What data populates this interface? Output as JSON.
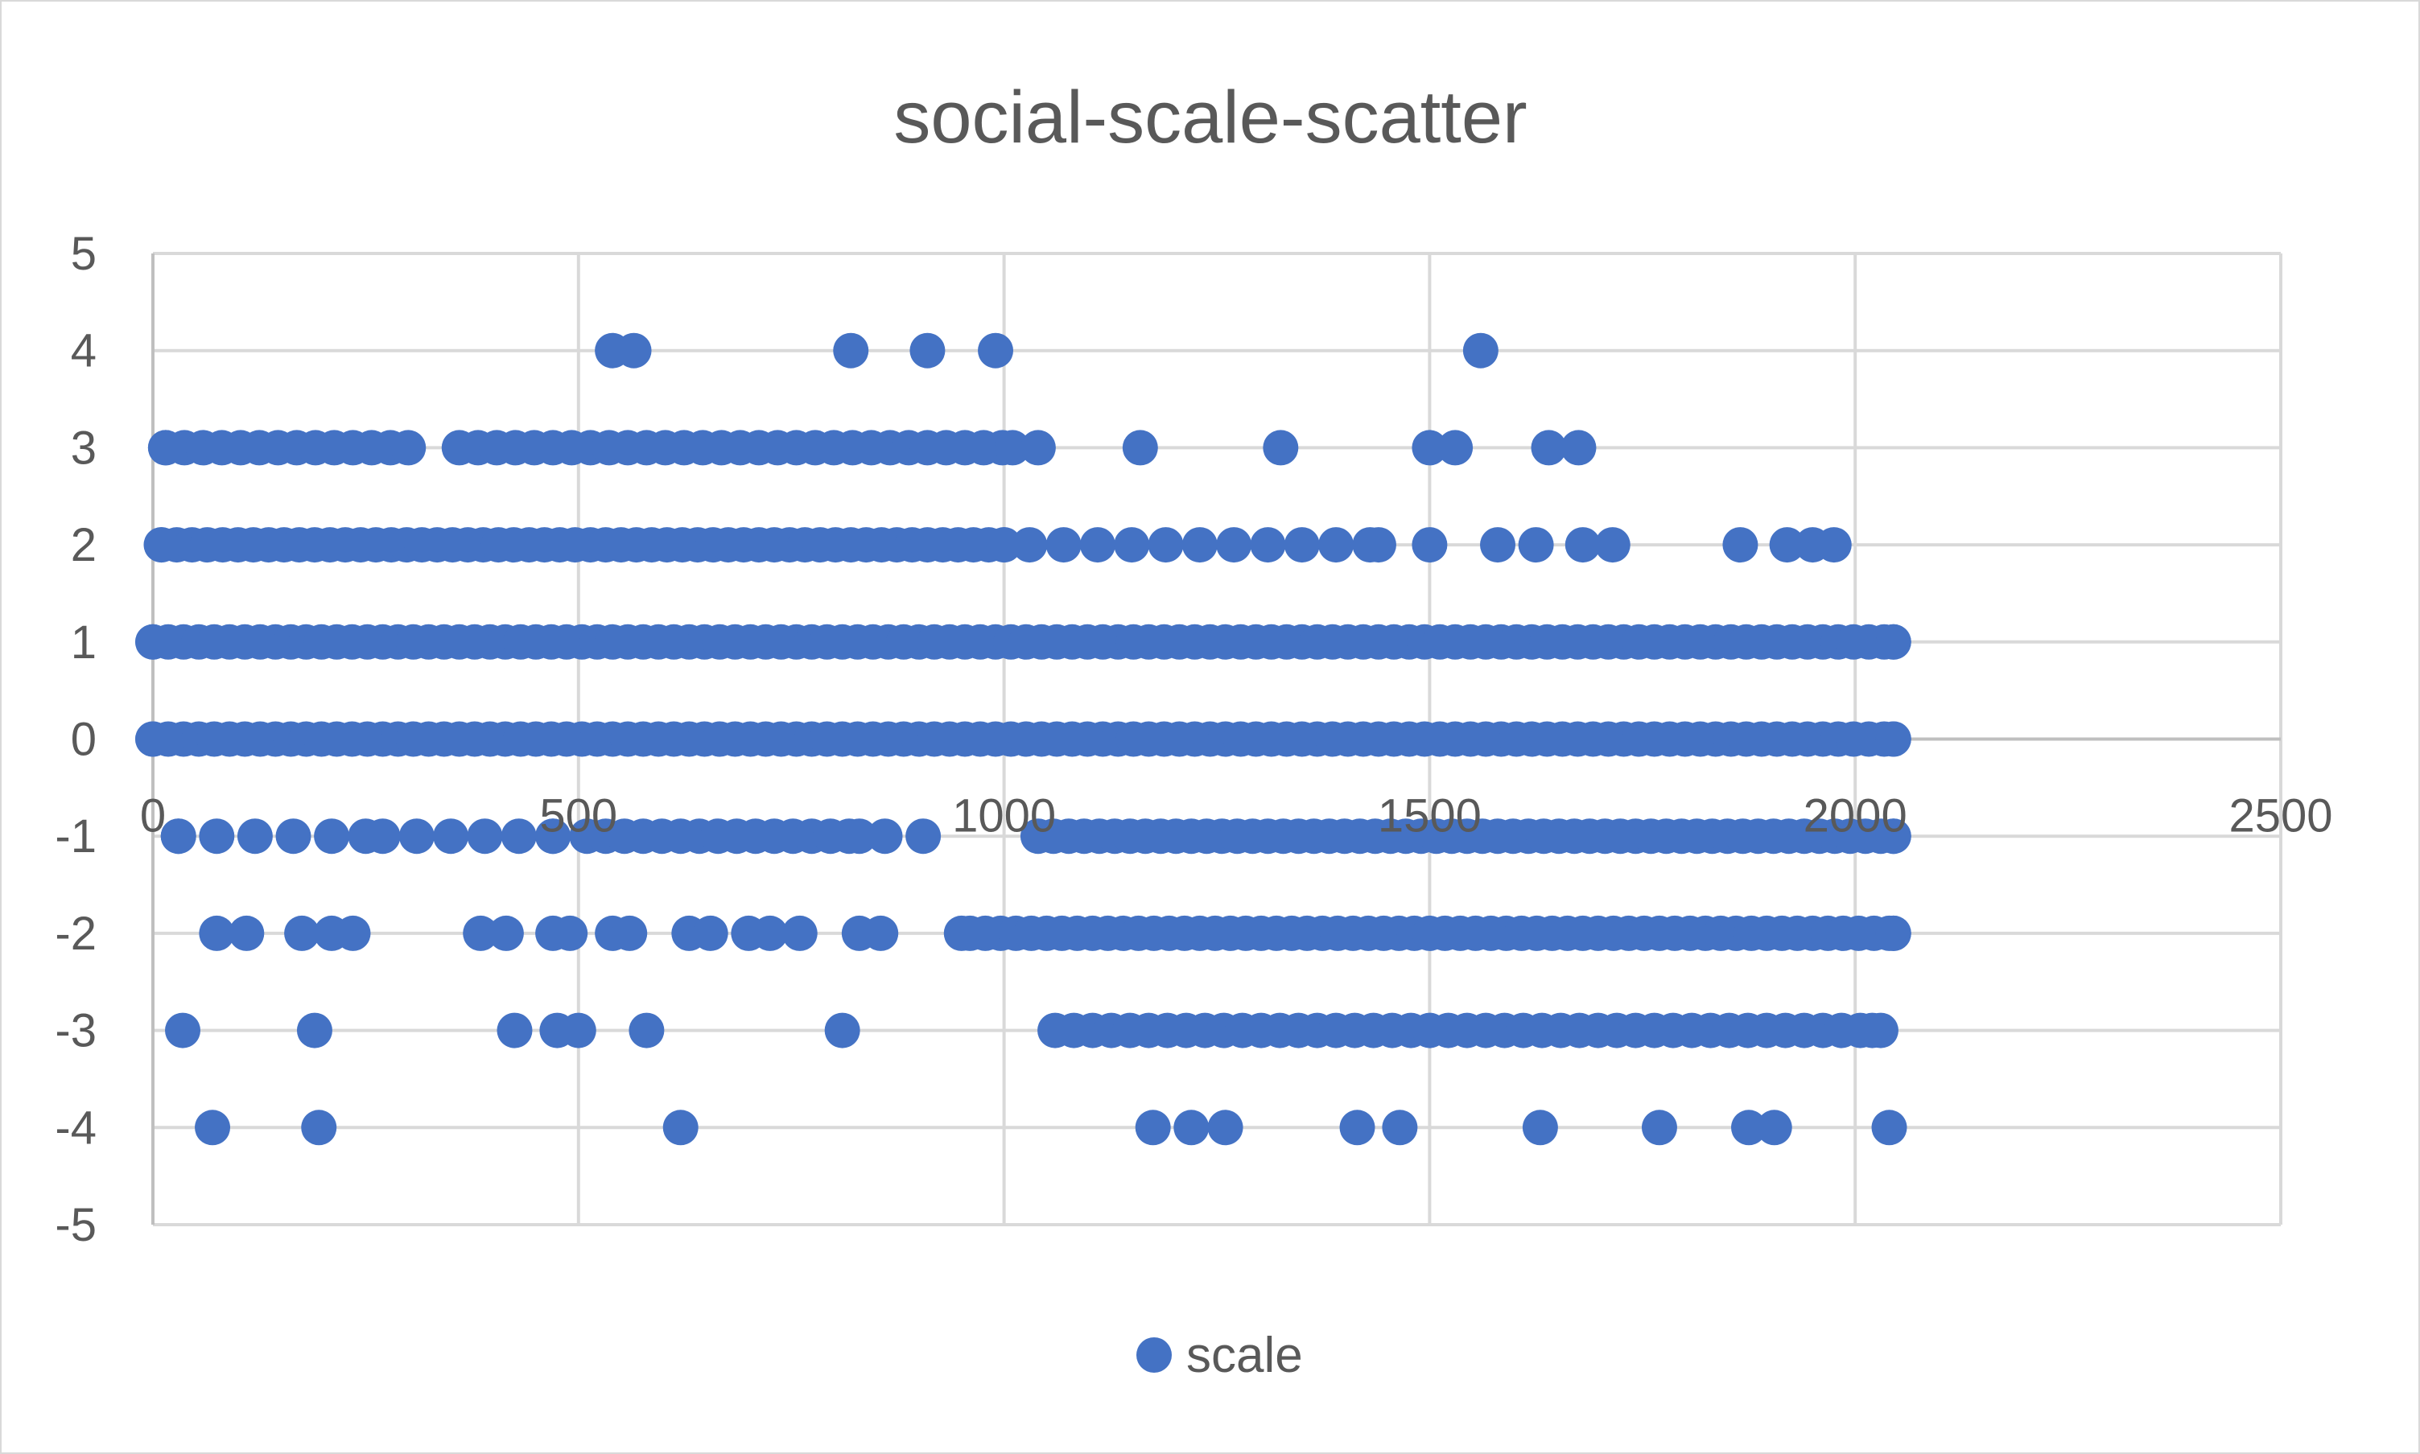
{
  "chart_data": {
    "type": "scatter",
    "title": "social-scale-scatter",
    "xlabel": "",
    "ylabel": "",
    "xlim": [
      0,
      2500
    ],
    "ylim": [
      -5,
      5
    ],
    "x_ticks": [
      0,
      500,
      1000,
      1500,
      2000,
      2500
    ],
    "y_ticks": [
      5,
      4,
      3,
      2,
      1,
      0,
      -1,
      -2,
      -3,
      -4,
      -5
    ],
    "x_tick_labels": [
      "0",
      "500",
      "1000",
      "1500",
      "2000",
      "2500"
    ],
    "y_tick_labels": [
      "5",
      "4",
      "3",
      "2",
      "1",
      "0",
      "-1",
      "-2",
      "-3",
      "-4",
      "-5"
    ],
    "grid": true,
    "legend_position": "bottom",
    "series": [
      {
        "name": "scale",
        "color": "#4472c4",
        "points": [
          {
            "x": 0,
            "y": 0
          },
          {
            "x": 0,
            "y": 1
          },
          {
            "x": 10,
            "y": 2
          },
          {
            "x": 15,
            "y": 3
          },
          {
            "x": 30,
            "y": -1
          },
          {
            "x": 35,
            "y": -3
          },
          {
            "x": 70,
            "y": -4
          },
          {
            "x": 75,
            "y": -2
          },
          {
            "x": 110,
            "y": -2
          },
          {
            "x": 175,
            "y": -2
          },
          {
            "x": 190,
            "y": -3
          },
          {
            "x": 195,
            "y": -4
          },
          {
            "x": 210,
            "y": -2
          },
          {
            "x": 235,
            "y": -2
          },
          {
            "x": 385,
            "y": -2
          },
          {
            "x": 415,
            "y": -2
          },
          {
            "x": 425,
            "y": -3
          },
          {
            "x": 470,
            "y": -2
          },
          {
            "x": 490,
            "y": -2
          },
          {
            "x": 475,
            "y": -3
          },
          {
            "x": 500,
            "y": -3
          },
          {
            "x": 540,
            "y": -2
          },
          {
            "x": 560,
            "y": -2
          },
          {
            "x": 580,
            "y": -3
          },
          {
            "x": 540,
            "y": 4
          },
          {
            "x": 565,
            "y": 4
          },
          {
            "x": 620,
            "y": -4
          },
          {
            "x": 630,
            "y": -2
          },
          {
            "x": 655,
            "y": -2
          },
          {
            "x": 700,
            "y": -2
          },
          {
            "x": 725,
            "y": -2
          },
          {
            "x": 760,
            "y": -2
          },
          {
            "x": 810,
            "y": -3
          },
          {
            "x": 820,
            "y": 4
          },
          {
            "x": 830,
            "y": -2
          },
          {
            "x": 855,
            "y": -2
          },
          {
            "x": 910,
            "y": 4
          },
          {
            "x": 990,
            "y": 4
          },
          {
            "x": 950,
            "y": -2
          },
          {
            "x": 860,
            "y": -1
          },
          {
            "x": 905,
            "y": -1
          },
          {
            "x": 1040,
            "y": 3
          },
          {
            "x": 1160,
            "y": 3
          },
          {
            "x": 1325,
            "y": 3
          },
          {
            "x": 1500,
            "y": 3
          },
          {
            "x": 1530,
            "y": 3
          },
          {
            "x": 1640,
            "y": 3
          },
          {
            "x": 1675,
            "y": 3
          },
          {
            "x": 1560,
            "y": 4
          },
          {
            "x": 1175,
            "y": -4
          },
          {
            "x": 1220,
            "y": -4
          },
          {
            "x": 1260,
            "y": -4
          },
          {
            "x": 1415,
            "y": -4
          },
          {
            "x": 1465,
            "y": -4
          },
          {
            "x": 1630,
            "y": -4
          },
          {
            "x": 1770,
            "y": -4
          },
          {
            "x": 1875,
            "y": -4
          },
          {
            "x": 1905,
            "y": -4
          },
          {
            "x": 2040,
            "y": -4
          },
          {
            "x": 1500,
            "y": 2
          },
          {
            "x": 1580,
            "y": 2
          },
          {
            "x": 1625,
            "y": 2
          },
          {
            "x": 1680,
            "y": 2
          },
          {
            "x": 1715,
            "y": 2
          },
          {
            "x": 1865,
            "y": 2
          },
          {
            "x": 1920,
            "y": 2
          },
          {
            "x": 1950,
            "y": 2
          },
          {
            "x": 1975,
            "y": 2
          },
          {
            "x": 2045,
            "y": 0
          },
          {
            "x": 2045,
            "y": 1
          },
          {
            "x": 2045,
            "y": -1
          },
          {
            "x": 2045,
            "y": -2
          },
          {
            "x": 2030,
            "y": -3
          }
        ],
        "dense_runs": [
          {
            "y": 1,
            "x_from": 0,
            "x_to": 2045,
            "step": 18
          },
          {
            "y": 0,
            "x_from": 0,
            "x_to": 2045,
            "step": 18
          },
          {
            "y": 2,
            "x_from": 10,
            "x_to": 1000,
            "step": 18
          },
          {
            "y": 2,
            "x_from": 1030,
            "x_to": 1440,
            "step": 40
          },
          {
            "y": 3,
            "x_from": 15,
            "x_to": 300,
            "step": 22
          },
          {
            "y": 3,
            "x_from": 360,
            "x_to": 1010,
            "step": 22
          },
          {
            "y": -1,
            "x_from": 30,
            "x_to": 250,
            "step": 45
          },
          {
            "y": -1,
            "x_from": 270,
            "x_to": 470,
            "step": 40
          },
          {
            "y": -1,
            "x_from": 510,
            "x_to": 830,
            "step": 22
          },
          {
            "y": -1,
            "x_from": 1040,
            "x_to": 2045,
            "step": 18
          },
          {
            "y": -2,
            "x_from": 960,
            "x_to": 2045,
            "step": 18
          },
          {
            "y": -3,
            "x_from": 1060,
            "x_to": 2020,
            "step": 22
          }
        ]
      }
    ]
  }
}
